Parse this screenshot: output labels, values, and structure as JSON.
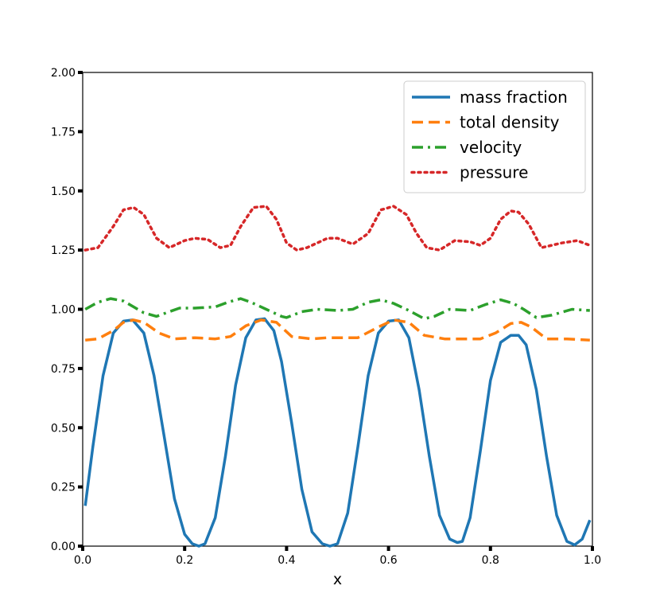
{
  "chart_data": {
    "type": "line",
    "title": "",
    "xlabel": "x",
    "ylabel": "",
    "xlim": [
      0.0,
      1.0
    ],
    "ylim": [
      0.0,
      2.0
    ],
    "grid": false,
    "legend_position": "top-right",
    "xticks": [
      "0.0",
      "0.2",
      "0.4",
      "0.6",
      "0.8",
      "1.0"
    ],
    "yticks": [
      "0.00",
      "0.25",
      "0.50",
      "0.75",
      "1.00",
      "1.25",
      "1.50",
      "1.75",
      "2.00"
    ],
    "series": [
      {
        "name": "mass fraction",
        "color": "#1f77b4",
        "style": "solid",
        "x": [
          0.005,
          0.02,
          0.04,
          0.06,
          0.08,
          0.098,
          0.12,
          0.14,
          0.16,
          0.18,
          0.2,
          0.215,
          0.228,
          0.24,
          0.26,
          0.28,
          0.3,
          0.32,
          0.34,
          0.357,
          0.375,
          0.39,
          0.41,
          0.43,
          0.45,
          0.47,
          0.485,
          0.5,
          0.52,
          0.54,
          0.56,
          0.58,
          0.6,
          0.62,
          0.64,
          0.66,
          0.68,
          0.7,
          0.72,
          0.735,
          0.745,
          0.76,
          0.78,
          0.8,
          0.82,
          0.84,
          0.855,
          0.87,
          0.89,
          0.91,
          0.93,
          0.95,
          0.965,
          0.98,
          0.995
        ],
        "values": [
          0.17,
          0.42,
          0.72,
          0.9,
          0.95,
          0.955,
          0.9,
          0.72,
          0.46,
          0.2,
          0.05,
          0.01,
          0.0,
          0.01,
          0.12,
          0.38,
          0.68,
          0.88,
          0.955,
          0.96,
          0.91,
          0.78,
          0.52,
          0.24,
          0.06,
          0.01,
          0.0,
          0.01,
          0.14,
          0.42,
          0.72,
          0.9,
          0.95,
          0.955,
          0.88,
          0.66,
          0.38,
          0.13,
          0.03,
          0.015,
          0.02,
          0.12,
          0.4,
          0.7,
          0.86,
          0.89,
          0.89,
          0.85,
          0.66,
          0.38,
          0.13,
          0.02,
          0.005,
          0.03,
          0.11
        ]
      },
      {
        "name": "total density",
        "color": "#ff7f0e",
        "style": "dashed",
        "x": [
          0.005,
          0.03,
          0.06,
          0.08,
          0.1,
          0.12,
          0.15,
          0.18,
          0.22,
          0.26,
          0.29,
          0.32,
          0.35,
          0.38,
          0.41,
          0.45,
          0.48,
          0.51,
          0.54,
          0.58,
          0.61,
          0.64,
          0.67,
          0.71,
          0.75,
          0.78,
          0.81,
          0.84,
          0.86,
          0.88,
          0.91,
          0.95,
          0.995
        ],
        "values": [
          0.87,
          0.875,
          0.91,
          0.945,
          0.955,
          0.945,
          0.9,
          0.875,
          0.88,
          0.875,
          0.885,
          0.93,
          0.955,
          0.945,
          0.885,
          0.875,
          0.88,
          0.88,
          0.88,
          0.925,
          0.955,
          0.945,
          0.89,
          0.875,
          0.875,
          0.875,
          0.9,
          0.94,
          0.945,
          0.925,
          0.875,
          0.875,
          0.87
        ]
      },
      {
        "name": "velocity",
        "color": "#2ca02c",
        "style": "dashdot",
        "x": [
          0.005,
          0.03,
          0.055,
          0.08,
          0.1,
          0.12,
          0.145,
          0.17,
          0.19,
          0.22,
          0.26,
          0.285,
          0.31,
          0.33,
          0.36,
          0.39,
          0.4,
          0.43,
          0.46,
          0.5,
          0.53,
          0.56,
          0.585,
          0.61,
          0.64,
          0.67,
          0.69,
          0.72,
          0.76,
          0.79,
          0.82,
          0.845,
          0.865,
          0.89,
          0.92,
          0.96,
          0.995
        ],
        "values": [
          1.0,
          1.03,
          1.045,
          1.035,
          1.01,
          0.985,
          0.97,
          0.99,
          1.005,
          1.005,
          1.01,
          1.03,
          1.045,
          1.03,
          1.0,
          0.97,
          0.965,
          0.99,
          1.0,
          0.995,
          1.0,
          1.03,
          1.04,
          1.025,
          0.995,
          0.96,
          0.97,
          1.0,
          0.995,
          1.02,
          1.04,
          1.025,
          1.0,
          0.965,
          0.975,
          1.0,
          0.995
        ]
      },
      {
        "name": "pressure",
        "color": "#d62728",
        "style": "dotted",
        "x": [
          0.005,
          0.03,
          0.06,
          0.08,
          0.1,
          0.12,
          0.145,
          0.17,
          0.2,
          0.22,
          0.245,
          0.27,
          0.29,
          0.31,
          0.335,
          0.36,
          0.38,
          0.4,
          0.42,
          0.44,
          0.48,
          0.5,
          0.53,
          0.56,
          0.585,
          0.61,
          0.635,
          0.655,
          0.675,
          0.7,
          0.73,
          0.76,
          0.78,
          0.8,
          0.82,
          0.84,
          0.855,
          0.875,
          0.9,
          0.94,
          0.97,
          0.995
        ],
        "values": [
          1.25,
          1.26,
          1.35,
          1.42,
          1.43,
          1.4,
          1.3,
          1.26,
          1.29,
          1.3,
          1.295,
          1.26,
          1.27,
          1.35,
          1.43,
          1.435,
          1.38,
          1.28,
          1.25,
          1.26,
          1.3,
          1.3,
          1.275,
          1.32,
          1.42,
          1.435,
          1.4,
          1.32,
          1.26,
          1.25,
          1.29,
          1.285,
          1.27,
          1.3,
          1.38,
          1.415,
          1.41,
          1.36,
          1.26,
          1.28,
          1.29,
          1.27
        ]
      }
    ]
  }
}
